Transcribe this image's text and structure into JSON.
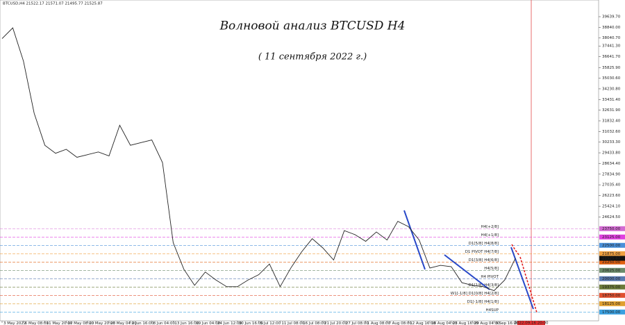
{
  "chart_data": {
    "type": "line",
    "header": "BTCUSD,H4  21522.17 21571.07 21495.77 21525.87",
    "title": "Волновой анализ BTCUSD H4",
    "subtitle": "( 11 сентября 2022 г.)",
    "categories": [
      "3 May 2022",
      null,
      "6 May 08:00",
      null,
      "11 May 20:00",
      null,
      "17 May 08:00",
      null,
      "20 May 20:00",
      null,
      "26 May 04:00",
      null,
      "2 Jun 16:00",
      null,
      "8 Jun 04:00",
      null,
      "13 Jun 16:00",
      null,
      "19 Jun 04:00",
      null,
      "24 Jun 12:00",
      null,
      "30 Jun 16:00",
      null,
      "5 Jul 12:00",
      null,
      "11 Jul 08:00",
      null,
      "16 Jul 08:00",
      null,
      "21 Jul 20:00",
      null,
      "27 Jul 08:00",
      null,
      "1 Aug 08:00",
      null,
      "7 Aug 08:00",
      null,
      "12 Aug 16:00",
      null,
      "18 Aug 04:00",
      null,
      "23 Aug 16:00",
      null,
      "29 Aug 04:00",
      null,
      "3 Sep 16:00",
      null,
      "9 Sep 00:00"
    ],
    "series": [
      {
        "name": "BTCUSD",
        "color": "#222222",
        "values": [
          38000,
          38800,
          36300,
          32400,
          30000,
          29400,
          29700,
          29100,
          29300,
          29500,
          29200,
          31500,
          30000,
          30200,
          30400,
          28700,
          22700,
          20700,
          19500,
          20500,
          19900,
          19400,
          19400,
          19900,
          20300,
          21100,
          19400,
          20800,
          22000,
          23000,
          22300,
          21400,
          23600,
          23300,
          22800,
          23500,
          22900,
          24300,
          23900,
          22900,
          20800,
          21000,
          20900,
          19700,
          19500,
          19400,
          19100,
          19900,
          21525.87
        ]
      }
    ],
    "ylim": [
      16840,
      40890
    ],
    "yticks": [
      {
        "value": 39639.7,
        "label": "39639.70"
      },
      {
        "value": 38840,
        "label": "38840.00"
      },
      {
        "value": 38040.7,
        "label": "38040.70"
      },
      {
        "value": 37441.3,
        "label": "37441.30"
      },
      {
        "value": 36641.7,
        "label": "36641.70"
      },
      {
        "value": 35825.9,
        "label": "35825.90"
      },
      {
        "value": 35030.6,
        "label": "35030.60"
      },
      {
        "value": 34230.8,
        "label": "34230.80"
      },
      {
        "value": 33431.4,
        "label": "33431.40"
      },
      {
        "value": 32631.9,
        "label": "32631.90"
      },
      {
        "value": 31832.4,
        "label": "31832.40"
      },
      {
        "value": 31032.6,
        "label": "31032.60"
      },
      {
        "value": 30233.3,
        "label": "30233.30"
      },
      {
        "value": 29433.8,
        "label": "29433.80"
      },
      {
        "value": 28634.4,
        "label": "28634.40"
      },
      {
        "value": 27834.9,
        "label": "27834.90"
      },
      {
        "value": 27035.4,
        "label": "27035.40"
      },
      {
        "value": 26223.6,
        "label": "26223.60"
      },
      {
        "value": 25424.1,
        "label": "25424.10"
      },
      {
        "value": 24624.5,
        "label": "24624.50"
      }
    ],
    "levels": [
      {
        "name": "H4[+2/8]",
        "value": 23750,
        "value_label": "23750.00",
        "color": "#d36ad3"
      },
      {
        "name": "H4[+1/8]",
        "value": 23125,
        "value_label": "23125.00",
        "color": "#e040e0"
      },
      {
        "name": "D1[5/8] H4[8/8]",
        "value": 22500,
        "value_label": "22500.00",
        "color": "#4a90d9"
      },
      {
        "name": "D1 PIVOT H4[7/8]",
        "value": 21875,
        "value_label": "21875.00",
        "color": "#f0a040"
      },
      {
        "name": "D1[3/8] H4[6/8]",
        "value": 21250,
        "value_label": "21250.00",
        "color": "#e06010"
      },
      {
        "name": "H4[5/8]",
        "value": 20625,
        "value_label": "20625.00",
        "color": "#6a8a6a"
      },
      {
        "name": "H4 PIVOT",
        "value": 20000,
        "value_label": "20000.00",
        "color": "#5a7ab0"
      },
      {
        "name": "D1[1/8] H4[3/8]",
        "value": 19375,
        "value_label": "19375.00",
        "color": "#6b7a3a"
      },
      {
        "name": "W1[-1/8] D1[0/8] H4[2/8]",
        "value": 18750,
        "value_label": "18750.00",
        "color": "#e05030"
      },
      {
        "name": "D1[-1/8] H4[1/8]",
        "value": 18125,
        "value_label": "18125.00",
        "color": "#e0a030"
      },
      {
        "name": "H4SUP",
        "value": 17500,
        "value_label": "17500.00",
        "color": "#3aa0e0"
      }
    ],
    "current_price": {
      "value": 21525.87,
      "label": "21525.87"
    },
    "time_marker_label": "2022.09.16 20:00"
  }
}
